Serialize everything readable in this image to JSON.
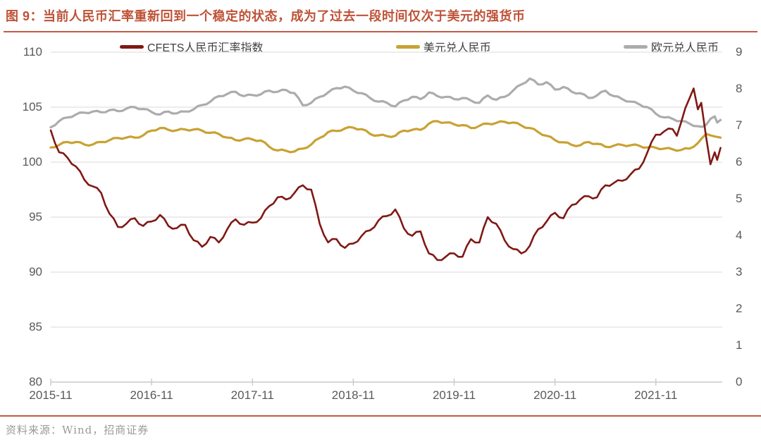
{
  "figure": {
    "title": "图 9：当前人民币汇率重新回到一个稳定的状态，成为了过去一段时间仅次于美元的强货币",
    "source": "资料来源：Wind，招商证券",
    "accent_color": "#C25B43"
  },
  "chart_data": {
    "type": "line",
    "title": "",
    "grid": true,
    "legend_position": "top",
    "x_tick_labels": [
      "2015-11",
      "2016-11",
      "2017-11",
      "2018-11",
      "2019-11",
      "2020-11",
      "2021-11"
    ],
    "x_months_per_tick": 12,
    "x_range_months": [
      0,
      79.9
    ],
    "left_axis": {
      "min": 80,
      "max": 110,
      "step": 5,
      "ticks": [
        110,
        105,
        100,
        95,
        90,
        85,
        80
      ]
    },
    "right_axis": {
      "min": 0,
      "max": 9,
      "step": 1,
      "ticks": [
        9,
        8,
        7,
        6,
        5,
        4,
        3,
        2,
        1,
        0
      ]
    },
    "colors": {
      "gridline": "#E6E6E6",
      "axis_line": "#C9C9C9",
      "tick_label": "#595959"
    },
    "series": [
      {
        "name": "CFETS人民币汇率指数",
        "axis": "left",
        "color": "#801814",
        "points": [
          [
            0,
            102.9
          ],
          [
            1,
            100.9
          ],
          [
            2,
            100.4
          ],
          [
            3,
            99.6
          ],
          [
            4,
            98.4
          ],
          [
            5,
            97.8
          ],
          [
            6,
            97.2
          ],
          [
            7,
            95.3
          ],
          [
            8,
            94.1
          ],
          [
            9,
            94.4
          ],
          [
            10,
            94.9
          ],
          [
            11,
            94.2
          ],
          [
            12,
            94.6
          ],
          [
            13,
            95.2
          ],
          [
            14,
            94.2
          ],
          [
            15,
            94.0
          ],
          [
            16,
            94.3
          ],
          [
            17,
            92.9
          ],
          [
            18,
            92.3
          ],
          [
            19,
            93.2
          ],
          [
            20,
            92.7
          ],
          [
            21,
            93.9
          ],
          [
            22,
            94.8
          ],
          [
            23,
            94.3
          ],
          [
            24,
            94.5
          ],
          [
            25,
            94.9
          ],
          [
            26,
            96.0
          ],
          [
            27,
            96.8
          ],
          [
            28,
            96.6
          ],
          [
            29,
            97.2
          ],
          [
            30,
            97.9
          ],
          [
            31,
            97.5
          ],
          [
            32,
            94.4
          ],
          [
            33,
            92.7
          ],
          [
            34,
            93.0
          ],
          [
            35,
            92.2
          ],
          [
            36,
            92.6
          ],
          [
            37,
            93.3
          ],
          [
            38,
            93.8
          ],
          [
            39,
            94.7
          ],
          [
            40,
            95.1
          ],
          [
            41,
            95.7
          ],
          [
            42,
            94.0
          ],
          [
            43,
            93.3
          ],
          [
            44,
            93.7
          ],
          [
            45,
            91.7
          ],
          [
            46,
            91.1
          ],
          [
            47,
            91.4
          ],
          [
            48,
            91.7
          ],
          [
            49,
            91.4
          ],
          [
            50,
            93.0
          ],
          [
            51,
            92.7
          ],
          [
            52,
            95.0
          ],
          [
            53,
            94.4
          ],
          [
            54,
            92.9
          ],
          [
            55,
            92.1
          ],
          [
            56,
            91.7
          ],
          [
            57,
            92.4
          ],
          [
            58,
            93.9
          ],
          [
            59,
            94.6
          ],
          [
            60,
            95.4
          ],
          [
            61,
            94.9
          ],
          [
            62,
            96.1
          ],
          [
            63,
            96.6
          ],
          [
            64,
            96.9
          ],
          [
            65,
            96.8
          ],
          [
            66,
            97.9
          ],
          [
            67,
            98.1
          ],
          [
            68,
            98.3
          ],
          [
            69,
            98.9
          ],
          [
            70,
            99.4
          ],
          [
            71,
            100.9
          ],
          [
            72,
            102.5
          ],
          [
            73,
            102.8
          ],
          [
            74,
            103.0
          ],
          [
            74.5,
            102.4
          ],
          [
            75,
            103.6
          ],
          [
            75.5,
            104.9
          ],
          [
            76,
            105.8
          ],
          [
            76.5,
            106.7
          ],
          [
            77,
            104.8
          ],
          [
            77.4,
            105.4
          ],
          [
            78,
            102.2
          ],
          [
            78.5,
            99.8
          ],
          [
            79,
            100.9
          ],
          [
            79.3,
            100.2
          ],
          [
            79.7,
            101.3
          ]
        ]
      },
      {
        "name": "美元兑人民币",
        "axis": "right",
        "color": "#C8A232",
        "points": [
          [
            0,
            6.4
          ],
          [
            1,
            6.47
          ],
          [
            2,
            6.55
          ],
          [
            3,
            6.55
          ],
          [
            4,
            6.48
          ],
          [
            5,
            6.48
          ],
          [
            6,
            6.55
          ],
          [
            7,
            6.6
          ],
          [
            8,
            6.66
          ],
          [
            9,
            6.67
          ],
          [
            10,
            6.67
          ],
          [
            11,
            6.73
          ],
          [
            12,
            6.86
          ],
          [
            13,
            6.93
          ],
          [
            14,
            6.88
          ],
          [
            15,
            6.87
          ],
          [
            16,
            6.89
          ],
          [
            17,
            6.89
          ],
          [
            18,
            6.86
          ],
          [
            19,
            6.8
          ],
          [
            20,
            6.77
          ],
          [
            21,
            6.67
          ],
          [
            22,
            6.6
          ],
          [
            23,
            6.63
          ],
          [
            24,
            6.62
          ],
          [
            25,
            6.59
          ],
          [
            26,
            6.42
          ],
          [
            27,
            6.32
          ],
          [
            28,
            6.31
          ],
          [
            29,
            6.29
          ],
          [
            30,
            6.37
          ],
          [
            31,
            6.48
          ],
          [
            32,
            6.66
          ],
          [
            33,
            6.82
          ],
          [
            34,
            6.85
          ],
          [
            35,
            6.92
          ],
          [
            36,
            6.94
          ],
          [
            37,
            6.9
          ],
          [
            38,
            6.77
          ],
          [
            39,
            6.73
          ],
          [
            40,
            6.71
          ],
          [
            41,
            6.72
          ],
          [
            42,
            6.86
          ],
          [
            43,
            6.88
          ],
          [
            44,
            6.88
          ],
          [
            45,
            7.05
          ],
          [
            46,
            7.12
          ],
          [
            47,
            7.08
          ],
          [
            48,
            7.03
          ],
          [
            49,
            7.01
          ],
          [
            50,
            6.93
          ],
          [
            51,
            6.99
          ],
          [
            52,
            7.05
          ],
          [
            53,
            7.07
          ],
          [
            54,
            7.1
          ],
          [
            55,
            7.08
          ],
          [
            56,
            7.0
          ],
          [
            57,
            6.93
          ],
          [
            58,
            6.82
          ],
          [
            59,
            6.72
          ],
          [
            60,
            6.6
          ],
          [
            61,
            6.54
          ],
          [
            62,
            6.47
          ],
          [
            63,
            6.46
          ],
          [
            64,
            6.55
          ],
          [
            65,
            6.5
          ],
          [
            66,
            6.42
          ],
          [
            67,
            6.45
          ],
          [
            68,
            6.47
          ],
          [
            69,
            6.46
          ],
          [
            70,
            6.45
          ],
          [
            71,
            6.4
          ],
          [
            72,
            6.39
          ],
          [
            73,
            6.37
          ],
          [
            74,
            6.35
          ],
          [
            75,
            6.33
          ],
          [
            76,
            6.37
          ],
          [
            76.5,
            6.42
          ],
          [
            77,
            6.52
          ],
          [
            77.5,
            6.66
          ],
          [
            78,
            6.77
          ],
          [
            78.5,
            6.73
          ],
          [
            79,
            6.7
          ],
          [
            79.7,
            6.67
          ]
        ]
      },
      {
        "name": "欧元兑人民币",
        "axis": "right",
        "color": "#ACACAC",
        "points": [
          [
            0,
            6.95
          ],
          [
            1,
            7.12
          ],
          [
            2,
            7.22
          ],
          [
            3,
            7.3
          ],
          [
            4,
            7.35
          ],
          [
            5,
            7.38
          ],
          [
            6,
            7.36
          ],
          [
            7,
            7.42
          ],
          [
            8,
            7.39
          ],
          [
            9,
            7.46
          ],
          [
            10,
            7.5
          ],
          [
            11,
            7.45
          ],
          [
            12,
            7.37
          ],
          [
            13,
            7.3
          ],
          [
            14,
            7.38
          ],
          [
            15,
            7.33
          ],
          [
            16,
            7.38
          ],
          [
            17,
            7.44
          ],
          [
            18,
            7.56
          ],
          [
            19,
            7.65
          ],
          [
            20,
            7.8
          ],
          [
            21,
            7.86
          ],
          [
            22,
            7.92
          ],
          [
            23,
            7.8
          ],
          [
            24,
            7.83
          ],
          [
            25,
            7.85
          ],
          [
            26,
            7.95
          ],
          [
            27,
            7.92
          ],
          [
            28,
            7.97
          ],
          [
            29,
            7.88
          ],
          [
            30,
            7.55
          ],
          [
            31,
            7.62
          ],
          [
            32,
            7.78
          ],
          [
            33,
            7.9
          ],
          [
            34,
            8.02
          ],
          [
            35,
            8.06
          ],
          [
            36,
            7.95
          ],
          [
            37,
            7.88
          ],
          [
            38,
            7.75
          ],
          [
            39,
            7.65
          ],
          [
            40,
            7.62
          ],
          [
            41,
            7.52
          ],
          [
            42,
            7.68
          ],
          [
            43,
            7.78
          ],
          [
            44,
            7.72
          ],
          [
            45,
            7.9
          ],
          [
            46,
            7.8
          ],
          [
            47,
            7.78
          ],
          [
            48,
            7.72
          ],
          [
            49,
            7.75
          ],
          [
            50,
            7.68
          ],
          [
            51,
            7.62
          ],
          [
            52,
            7.82
          ],
          [
            53,
            7.7
          ],
          [
            54,
            7.78
          ],
          [
            55,
            7.95
          ],
          [
            56,
            8.12
          ],
          [
            57,
            8.28
          ],
          [
            58,
            8.12
          ],
          [
            59,
            8.18
          ],
          [
            60,
            7.98
          ],
          [
            61,
            8.05
          ],
          [
            62,
            7.92
          ],
          [
            63,
            7.88
          ],
          [
            64,
            7.75
          ],
          [
            65,
            7.82
          ],
          [
            66,
            7.95
          ],
          [
            67,
            7.8
          ],
          [
            68,
            7.72
          ],
          [
            69,
            7.65
          ],
          [
            70,
            7.58
          ],
          [
            71,
            7.5
          ],
          [
            72,
            7.32
          ],
          [
            73,
            7.22
          ],
          [
            74,
            7.18
          ],
          [
            75,
            7.12
          ],
          [
            76,
            7.05
          ],
          [
            77,
            6.98
          ],
          [
            77.5,
            6.96
          ],
          [
            78,
            7.02
          ],
          [
            78.5,
            7.18
          ],
          [
            79,
            7.25
          ],
          [
            79.3,
            7.08
          ],
          [
            79.7,
            7.15
          ]
        ]
      }
    ]
  }
}
